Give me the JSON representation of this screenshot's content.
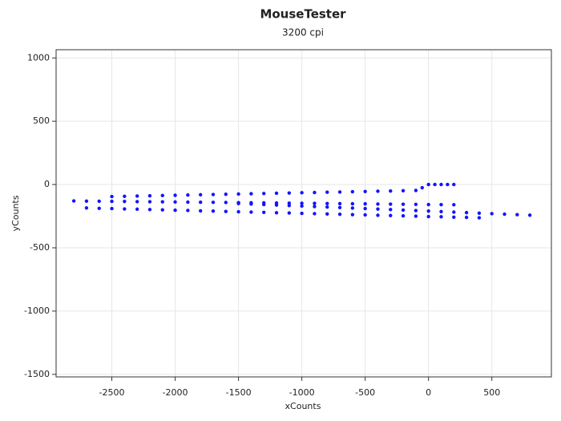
{
  "chart_data": {
    "type": "scatter",
    "title": "MouseTester",
    "subtitle": "3200 cpi",
    "x_label": "xCounts",
    "y_label": "yCounts",
    "xlim": [
      -2940,
      970
    ],
    "ylim": [
      -1520,
      1065
    ],
    "xticks": [
      -2500,
      -2000,
      -1500,
      -1000,
      -500,
      0,
      500
    ],
    "yticks": [
      -1500,
      -1000,
      -500,
      0,
      500,
      1000
    ],
    "grid": true,
    "series": [
      {
        "color": "#1414ff",
        "x": [
          -2500,
          -2400,
          -2300,
          -2200,
          -2100,
          -2000,
          -1900,
          -1800,
          -1700,
          -1600,
          -1500,
          -1400,
          -1300,
          -1200,
          -1100,
          -1000,
          -900,
          -800,
          -700,
          -600,
          -500,
          -400,
          -300,
          -200,
          -100,
          -50,
          0,
          50,
          100,
          150,
          200,
          -2800,
          -2700,
          -2600,
          -2500,
          -2400,
          -2300,
          -2200,
          -2100,
          -2000,
          -1900,
          -1800,
          -1700,
          -1600,
          -1500,
          -1400,
          -1300,
          -1200,
          -1100,
          -1000,
          -900,
          -800,
          -700,
          -600,
          -500,
          -400,
          -300,
          -200,
          -100,
          0,
          100,
          200,
          -2700,
          -2600,
          -2500,
          -2400,
          -2300,
          -2200,
          -2100,
          -2000,
          -1900,
          -1800,
          -1700,
          -1600,
          -1500,
          -1400,
          -1300,
          -1200,
          -1100,
          -1000,
          -900,
          -800,
          -700,
          -600,
          -500,
          -400,
          -300,
          -200,
          -100,
          0,
          100,
          200,
          300,
          400,
          -1500,
          -1400,
          -1300,
          -1200,
          -1100,
          -1000,
          -900,
          -800,
          -700,
          -600,
          -500,
          -400,
          -300,
          -200,
          -100,
          0,
          100,
          200,
          300,
          400,
          500,
          600,
          700,
          800
        ],
        "values": [
          -95,
          -93,
          -91,
          -89,
          -87,
          -85,
          -83,
          -81,
          -79,
          -77,
          -75,
          -73,
          -71,
          -69,
          -67,
          -65,
          -63,
          -61,
          -59,
          -57,
          -55,
          -53,
          -51,
          -49,
          -47,
          -25,
          0,
          0,
          0,
          0,
          0,
          -130,
          -131,
          -132,
          -133,
          -134,
          -135,
          -136,
          -137,
          -138,
          -139,
          -140,
          -141,
          -142,
          -143,
          -144,
          -145,
          -146,
          -147,
          -148,
          -149,
          -150,
          -151,
          -152,
          -153,
          -154,
          -155,
          -156,
          -157,
          -158,
          -159,
          -160,
          -185,
          -188,
          -190,
          -193,
          -195,
          -198,
          -200,
          -203,
          -205,
          -208,
          -210,
          -213,
          -215,
          -218,
          -220,
          -223,
          -225,
          -228,
          -230,
          -233,
          -235,
          -238,
          -240,
          -243,
          -245,
          -248,
          -250,
          -253,
          -255,
          -258,
          -260,
          -263,
          -150,
          -154,
          -158,
          -162,
          -166,
          -170,
          -174,
          -178,
          -182,
          -186,
          -190,
          -194,
          -198,
          -202,
          -206,
          -210,
          -214,
          -218,
          -222,
          -226,
          -230,
          -234,
          -238,
          -242
        ]
      }
    ]
  }
}
